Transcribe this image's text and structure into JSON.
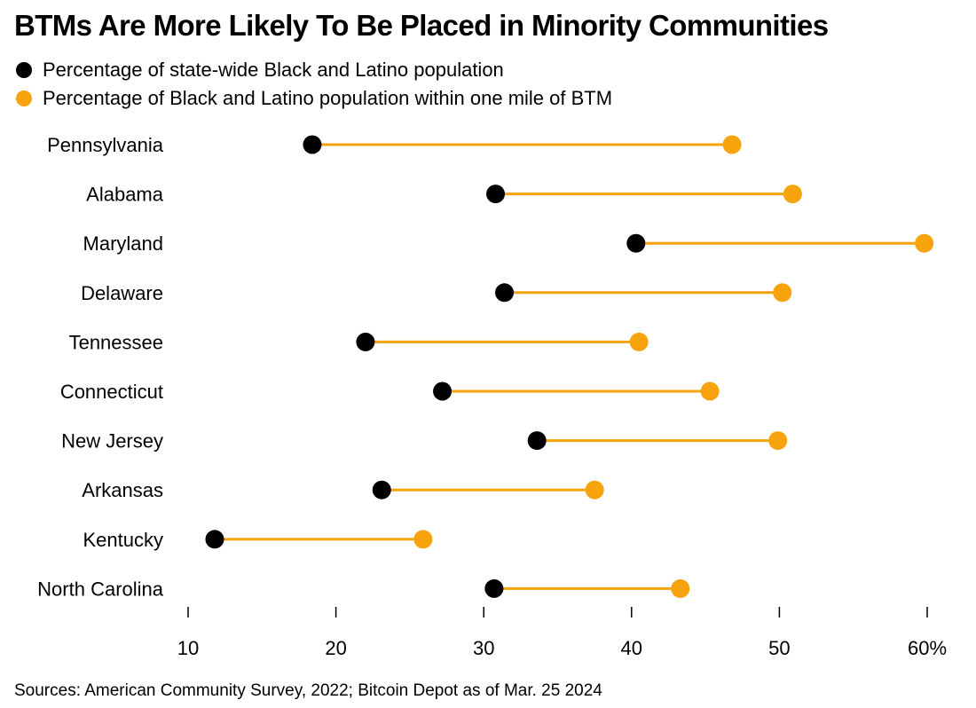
{
  "colors": {
    "state": "#000000",
    "btm": "#f7a30e",
    "axis": "#000000"
  },
  "chart_data": {
    "type": "dumbbell",
    "title": "BTMs Are More Likely To Be Placed in Minority Communities",
    "legend": [
      {
        "name": "Percentage of state-wide Black and Latino population",
        "color": "#000000"
      },
      {
        "name": "Percentage of Black and Latino population within one mile of BTM",
        "color": "#f7a30e"
      }
    ],
    "categories": [
      "Pennsylvania",
      "Alabama",
      "Maryland",
      "Delaware",
      "Tennessee",
      "Connecticut",
      "New Jersey",
      "Arkansas",
      "Kentucky",
      "North Carolina"
    ],
    "series": [
      {
        "name": "Percentage of state-wide Black and Latino population",
        "values": [
          18.4,
          30.8,
          40.3,
          31.4,
          22.0,
          27.2,
          33.6,
          23.1,
          11.8,
          30.7
        ]
      },
      {
        "name": "Percentage of Black and Latino population within one mile of BTM",
        "values": [
          46.8,
          50.9,
          59.8,
          50.2,
          40.5,
          45.3,
          49.9,
          37.5,
          25.9,
          43.3
        ]
      }
    ],
    "xlim": [
      10,
      60
    ],
    "xticks": [
      10,
      20,
      30,
      40,
      50,
      60
    ],
    "xtick_labels": [
      "10",
      "20",
      "30",
      "40",
      "50",
      "60%"
    ],
    "source": "Sources: American Community Survey, 2022; Bitcoin Depot as of Mar. 25 2024"
  }
}
